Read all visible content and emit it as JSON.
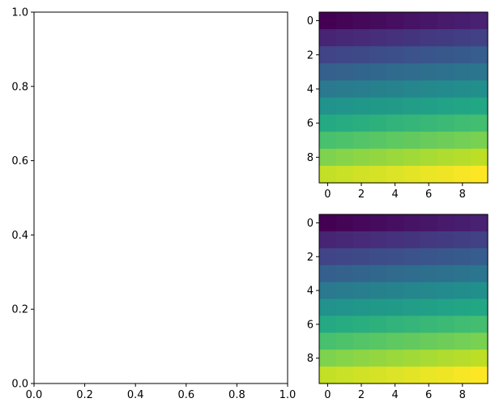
{
  "chart_data": [
    {
      "type": "scatter",
      "title": "",
      "xlabel": "",
      "ylabel": "",
      "xlim": [
        0,
        1
      ],
      "ylim": [
        0,
        1
      ],
      "x_ticks": [
        "0.0",
        "0.2",
        "0.4",
        "0.6",
        "0.8",
        "1.0"
      ],
      "y_ticks": [
        "0.0",
        "0.2",
        "0.4",
        "0.6",
        "0.8",
        "1.0"
      ],
      "series": []
    },
    {
      "type": "heatmap",
      "title": "",
      "colormap": "viridis",
      "rows": 10,
      "cols": 10,
      "values_formula": "value[i][j] = 10*i + j",
      "x_ticks": [
        "0",
        "2",
        "4",
        "6",
        "8"
      ],
      "y_ticks": [
        "0",
        "2",
        "4",
        "6",
        "8"
      ],
      "y_inverted": true
    },
    {
      "type": "heatmap",
      "title": "",
      "colormap": "viridis",
      "rows": 10,
      "cols": 10,
      "values_formula": "value[i][j] = 10*i + j",
      "x_ticks": [
        "0",
        "2",
        "4",
        "6",
        "8"
      ],
      "y_ticks": [
        "0",
        "2",
        "4",
        "6",
        "8"
      ],
      "y_inverted": true
    }
  ]
}
